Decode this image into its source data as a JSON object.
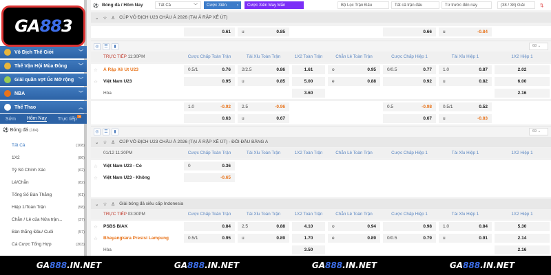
{
  "logo": "GA888",
  "sidebar": {
    "sections": [
      {
        "label": "Vô Địch Thế Giới"
      },
      {
        "label": "Thế Vận Hội Mùa Đông"
      },
      {
        "label": "Giải quần vợt Úc Mở rộng"
      },
      {
        "label": "NBA"
      },
      {
        "label": "Thể Thao"
      }
    ],
    "tabs": [
      {
        "label": "Sớm"
      },
      {
        "label": "Hôm Nay"
      },
      {
        "label": "Trực tiếp",
        "badge": "79"
      }
    ],
    "sport": {
      "label": "Bóng đá",
      "count": "(184)"
    },
    "items": [
      {
        "label": "Tất Cả",
        "count": "(108)"
      },
      {
        "label": "1X2",
        "count": "(86)"
      },
      {
        "label": "Tỷ Số Chính Xác",
        "count": "(62)"
      },
      {
        "label": "Lẻ/Chẵn",
        "count": "(82)"
      },
      {
        "label": "Tổng Số Bàn Thắng",
        "count": "(61)"
      },
      {
        "label": "Hiệp 1/Toàn Trận",
        "count": "(58)"
      },
      {
        "label": "Chẵn / Lẻ của Nửa trận...",
        "count": "(37)"
      },
      {
        "label": "Bàn thắng Đầu/ Cuối",
        "count": "(57)"
      },
      {
        "label": "Cá Cược Tổng Hợp",
        "count": "(303)"
      }
    ]
  },
  "topbar": {
    "title": "Bóng đá / Hôm Nay",
    "select": "Tất Cả",
    "parlay": "Cược Xiên",
    "lucky": "Cược Xiên May Mắn",
    "filter": "Bộ Lọc Trận Đấu",
    "all_matches": "Tất cả trận đấu",
    "period": "Từ trước đến nay",
    "leagues": "(38 / 38) Giải"
  },
  "columns": [
    "Cược Chấp Toàn Trận",
    "Tài Xỉu Toàn Trận",
    "1X2 Toàn Trận",
    "Chẵn Lẻ Toàn Trận",
    "Cược Chấp Hiệp 1",
    "Tài Xỉu Hiệp 1",
    "1X2 Hiệp 1"
  ],
  "league1": "CÚP VÔ ĐỊCH U23 CHÂU Á 2026 (TẠI Ả RẬP XÊ ÚT)",
  "league2": "CÚP VÔ ĐỊCH U23 CHÂU Á 2026 (TẠI Ả RẬP XÊ ÚT) - ĐÔI ĐẦU BẢNG A",
  "league3": "Giải bóng đá siêu cấp Indonesia",
  "dropdown1": "68",
  "dropdown2": "69",
  "prev_row": {
    "team": "",
    "style": "",
    "cells": [
      {
        "r": "0.61"
      },
      {
        "l": "u",
        "r": "0.85"
      },
      null,
      null,
      {
        "r": "0.66"
      },
      {
        "l": "u",
        "r": "-0.84"
      },
      null
    ]
  },
  "matches": [
    {
      "status": "TRỰC TIẾP",
      "time": "11:30PM",
      "rows": [
        {
          "team": "Ả Rập Xê Út U23",
          "style": "hl",
          "cells": [
            {
              "l": "0.5/1",
              "r": "0.76"
            },
            {
              "l": "2/2.5",
              "r": "0.86"
            },
            {
              "c": "1.61"
            },
            {
              "l": "o",
              "r": "0.95"
            },
            {
              "l": "0/0.5",
              "r": "0.77"
            },
            {
              "l": "1.0",
              "r": "0.87"
            },
            {
              "c": "2.02"
            }
          ]
        },
        {
          "team": "Việt Nam U23",
          "style": "",
          "cells": [
            {
              "r": "0.95"
            },
            {
              "l": "u",
              "r": "0.85"
            },
            {
              "c": "5.00"
            },
            {
              "l": "e",
              "r": "0.88"
            },
            {
              "r": "0.92"
            },
            {
              "l": "u",
              "r": "0.82"
            },
            {
              "c": "6.00"
            }
          ]
        },
        {
          "team": "Hòa",
          "style": "plain",
          "cells": [
            null,
            null,
            {
              "c": "3.60"
            },
            null,
            null,
            null,
            {
              "c": "2.16"
            }
          ]
        },
        {
          "team": "",
          "style": "plain",
          "cells": [
            {
              "l": "1.0",
              "r": "-0.92"
            },
            {
              "l": "2.5",
              "r": "-0.96"
            },
            null,
            null,
            {
              "l": "0.5",
              "r": "-0.98"
            },
            {
              "l": "0.5/1",
              "r": "0.52"
            },
            null
          ]
        },
        {
          "team": "",
          "style": "plain",
          "cells": [
            {
              "r": "0.63"
            },
            {
              "l": "u",
              "r": "0.67"
            },
            null,
            null,
            {
              "r": "0.67"
            },
            {
              "l": "u",
              "r": "-0.83"
            },
            null
          ]
        }
      ]
    },
    {
      "status": "",
      "time": "01/12 11:30PM",
      "rows": [
        {
          "team": "Việt Nam U23 - Có",
          "style": "",
          "cells": [
            {
              "l": "0",
              "r": "0.36"
            },
            null,
            null,
            null,
            null,
            null,
            null
          ]
        },
        {
          "team": "Việt Nam U23 - Không",
          "style": "",
          "cells": [
            {
              "r": "-0.65"
            },
            null,
            null,
            null,
            null,
            null,
            null
          ]
        }
      ]
    },
    {
      "status": "TRỰC TIẾP",
      "time": "03:30PM",
      "rows": [
        {
          "team": "PSBS BIAK",
          "style": "",
          "cells": [
            {
              "r": "0.84"
            },
            {
              "l": "2.5",
              "r": "0.88"
            },
            {
              "c": "4.10"
            },
            {
              "l": "o",
              "r": "0.94"
            },
            {
              "r": "0.98"
            },
            {
              "l": "1.0",
              "r": "0.84"
            },
            {
              "c": "5.30"
            }
          ]
        },
        {
          "team": "Bhayangkara Presisi Lampung",
          "style": "hl",
          "cells": [
            {
              "l": "0.5/1",
              "r": "0.95"
            },
            {
              "l": "u",
              "r": "0.89"
            },
            {
              "c": "1.70"
            },
            {
              "l": "e",
              "r": "0.89"
            },
            {
              "l": "0/0.5",
              "r": "0.79"
            },
            {
              "l": "u",
              "r": "0.91"
            },
            {
              "c": "2.14"
            }
          ]
        },
        {
          "team": "Hòa",
          "style": "plain",
          "cells": [
            null,
            null,
            {
              "c": "3.50"
            },
            null,
            null,
            null,
            {
              "c": "2.16"
            }
          ]
        }
      ]
    }
  ],
  "watermark": [
    "GA",
    "888",
    ".IN.NET"
  ],
  "colors": {
    "primary": "#2d63a6",
    "accent": "#e8731a",
    "purple": "#7b2ff7"
  }
}
